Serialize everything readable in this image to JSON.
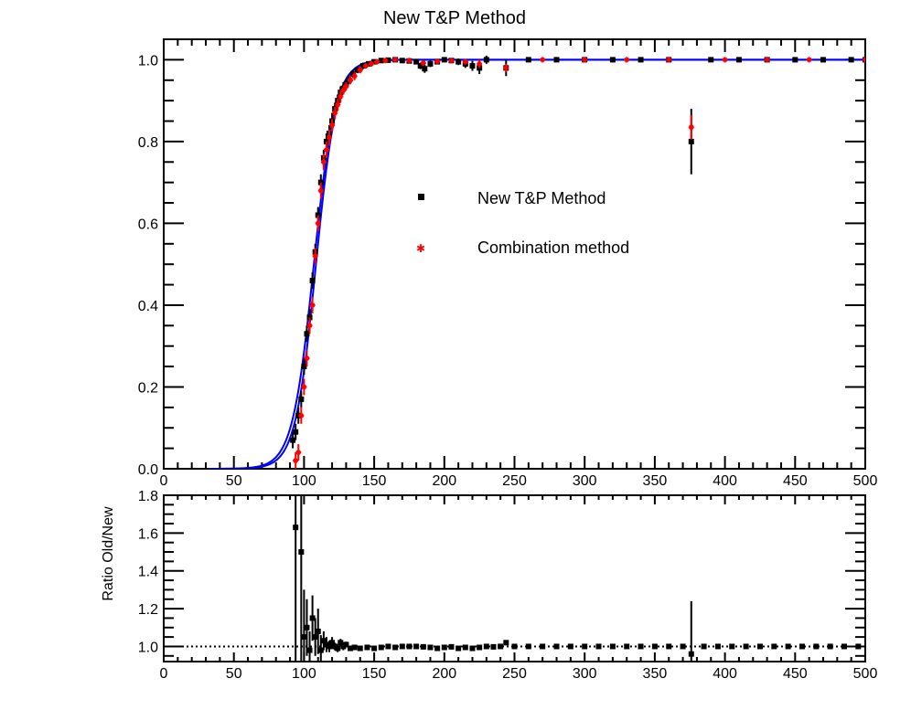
{
  "chart_data": [
    {
      "type": "scatter",
      "title": "New T&P Method",
      "xlabel": "",
      "ylabel": "",
      "xlim": [
        0,
        500
      ],
      "ylim": [
        0,
        1.05
      ],
      "x_ticks": [
        0,
        50,
        100,
        150,
        200,
        250,
        300,
        350,
        400,
        450,
        500
      ],
      "y_ticks": [
        0.0,
        0.2,
        0.4,
        0.6,
        0.8,
        1.0
      ],
      "x_tick_labels": [
        "0",
        "50",
        "100",
        "150",
        "200",
        "250",
        "300",
        "350",
        "400",
        "450",
        "500"
      ],
      "y_tick_labels": [
        "0.0",
        "0.2",
        "0.4",
        "0.6",
        "0.8",
        "1.0"
      ],
      "grid": false,
      "legend": {
        "placement": "center",
        "entries": [
          {
            "label": "New T&P Method",
            "color": "#000000",
            "marker": "square"
          },
          {
            "label": "Combination method",
            "color": "#ff0000",
            "marker": "star"
          }
        ]
      },
      "series": [
        {
          "name": "New T&P Method",
          "color": "#000000",
          "points": [
            [
              92,
              0.07,
              0.02
            ],
            [
              94,
              0.09,
              0.02
            ],
            [
              96,
              0.13,
              0.02
            ],
            [
              98,
              0.17,
              0.02
            ],
            [
              100,
              0.25,
              0.02
            ],
            [
              102,
              0.33,
              0.02
            ],
            [
              104,
              0.37,
              0.02
            ],
            [
              106,
              0.46,
              0.02
            ],
            [
              108,
              0.53,
              0.02
            ],
            [
              110,
              0.62,
              0.02
            ],
            [
              112,
              0.7,
              0.02
            ],
            [
              114,
              0.76,
              0.02
            ],
            [
              116,
              0.8,
              0.02
            ],
            [
              118,
              0.82,
              0.02
            ],
            [
              120,
              0.85,
              0.02
            ],
            [
              122,
              0.88,
              0.015
            ],
            [
              124,
              0.9,
              0.015
            ],
            [
              126,
              0.92,
              0.015
            ],
            [
              128,
              0.93,
              0.015
            ],
            [
              130,
              0.94,
              0.01
            ],
            [
              132,
              0.95,
              0.01
            ],
            [
              135,
              0.965,
              0.01
            ],
            [
              138,
              0.975,
              0.008
            ],
            [
              142,
              0.985,
              0.008
            ],
            [
              146,
              0.99,
              0.006
            ],
            [
              150,
              0.995,
              0.005
            ],
            [
              155,
              0.998,
              0.005
            ],
            [
              160,
              0.999,
              0.004
            ],
            [
              165,
              1.0,
              0.004
            ],
            [
              170,
              0.998,
              0.004
            ],
            [
              175,
              0.997,
              0.005
            ],
            [
              180,
              0.995,
              0.006
            ],
            [
              183,
              0.985,
              0.008
            ],
            [
              186,
              0.978,
              0.01
            ],
            [
              190,
              0.99,
              0.008
            ],
            [
              195,
              0.995,
              0.006
            ],
            [
              200,
              1.0,
              0.005
            ],
            [
              205,
              0.998,
              0.006
            ],
            [
              210,
              0.995,
              0.008
            ],
            [
              215,
              0.99,
              0.01
            ],
            [
              220,
              0.985,
              0.012
            ],
            [
              225,
              0.98,
              0.015
            ],
            [
              230,
              1.0,
              0.01
            ],
            [
              244,
              0.98,
              0.02
            ],
            [
              260,
              1.0,
              0.005
            ],
            [
              280,
              1.0,
              0.005
            ],
            [
              300,
              1.0,
              0.005
            ],
            [
              320,
              1.0,
              0.005
            ],
            [
              340,
              1.0,
              0.005
            ],
            [
              360,
              1.0,
              0.005
            ],
            [
              376,
              0.8,
              0.08
            ],
            [
              390,
              1.0,
              0.005
            ],
            [
              410,
              1.0,
              0.005
            ],
            [
              430,
              1.0,
              0.005
            ],
            [
              450,
              1.0,
              0.005
            ],
            [
              470,
              1.0,
              0.005
            ],
            [
              490,
              1.0,
              0.005
            ],
            [
              500,
              1.0,
              0.005
            ]
          ]
        },
        {
          "name": "Combination method",
          "color": "#ff0000",
          "points": [
            [
              94,
              0.02,
              0.02
            ],
            [
              96,
              0.04,
              0.02
            ],
            [
              98,
              0.13,
              0.02
            ],
            [
              100,
              0.2,
              0.02
            ],
            [
              102,
              0.27,
              0.02
            ],
            [
              104,
              0.35,
              0.02
            ],
            [
              106,
              0.4,
              0.02
            ],
            [
              108,
              0.52,
              0.02
            ],
            [
              110,
              0.6,
              0.02
            ],
            [
              112,
              0.68,
              0.02
            ],
            [
              114,
              0.75,
              0.02
            ],
            [
              116,
              0.78,
              0.02
            ],
            [
              118,
              0.81,
              0.02
            ],
            [
              120,
              0.84,
              0.015
            ],
            [
              122,
              0.87,
              0.015
            ],
            [
              124,
              0.89,
              0.015
            ],
            [
              126,
              0.91,
              0.015
            ],
            [
              128,
              0.925,
              0.01
            ],
            [
              130,
              0.935,
              0.01
            ],
            [
              133,
              0.95,
              0.01
            ],
            [
              136,
              0.96,
              0.01
            ],
            [
              140,
              0.975,
              0.008
            ],
            [
              144,
              0.985,
              0.006
            ],
            [
              148,
              0.99,
              0.005
            ],
            [
              152,
              0.995,
              0.005
            ],
            [
              158,
              0.998,
              0.004
            ],
            [
              165,
              1.0,
              0.004
            ],
            [
              175,
              0.998,
              0.004
            ],
            [
              185,
              0.992,
              0.006
            ],
            [
              195,
              0.996,
              0.005
            ],
            [
              205,
              0.998,
              0.005
            ],
            [
              215,
              0.995,
              0.006
            ],
            [
              225,
              0.99,
              0.01
            ],
            [
              244,
              0.98,
              0.01
            ],
            [
              270,
              1.0,
              0.004
            ],
            [
              300,
              1.0,
              0.004
            ],
            [
              330,
              1.0,
              0.004
            ],
            [
              360,
              1.0,
              0.004
            ],
            [
              376,
              0.835,
              0.03
            ],
            [
              400,
              1.0,
              0.004
            ],
            [
              430,
              1.0,
              0.004
            ],
            [
              460,
              1.0,
              0.004
            ],
            [
              500,
              1.0,
              0.004
            ]
          ]
        }
      ],
      "fits": [
        {
          "color": "#0000ff",
          "mean": 107,
          "width": 13,
          "x_start": 32,
          "x_end": 500
        },
        {
          "color": "#0000ff",
          "mean": 108.5,
          "width": 12.5,
          "x_start": 32,
          "x_end": 500
        }
      ]
    },
    {
      "type": "scatter",
      "title": "",
      "xlabel": "",
      "ylabel": "Ratio Old/New",
      "xlim": [
        0,
        500
      ],
      "ylim": [
        0.92,
        1.8
      ],
      "x_ticks": [
        0,
        50,
        100,
        150,
        200,
        250,
        300,
        350,
        400,
        450,
        500
      ],
      "y_ticks": [
        1.0,
        1.2,
        1.4,
        1.6,
        1.8
      ],
      "x_tick_labels": [
        "0",
        "50",
        "100",
        "150",
        "200",
        "250",
        "300",
        "350",
        "400",
        "450",
        "500"
      ],
      "y_tick_labels": [
        "1.0",
        "1.2",
        "1.4",
        "1.6",
        "1.8"
      ],
      "grid": false,
      "reference_line": 1.0,
      "series": [
        {
          "name": "",
          "color": "#000000",
          "points": [
            [
              94,
              1.63,
              1.0
            ],
            [
              98,
              1.5,
              1.0
            ],
            [
              100,
              1.05,
              0.25
            ],
            [
              102,
              1.1,
              0.15
            ],
            [
              104,
              0.98,
              0.1
            ],
            [
              106,
              1.15,
              0.12
            ],
            [
              108,
              1.05,
              0.1
            ],
            [
              110,
              1.08,
              0.12
            ],
            [
              112,
              0.98,
              0.08
            ],
            [
              114,
              1.03,
              0.05
            ],
            [
              116,
              1.01,
              0.04
            ],
            [
              118,
              1.0,
              0.03
            ],
            [
              120,
              1.02,
              0.03
            ],
            [
              122,
              1.0,
              0.02
            ],
            [
              124,
              0.99,
              0.02
            ],
            [
              126,
              1.02,
              0.02
            ],
            [
              128,
              1.0,
              0.02
            ],
            [
              130,
              1.01,
              0.015
            ],
            [
              133,
              0.99,
              0.01
            ],
            [
              136,
              0.995,
              0.01
            ],
            [
              140,
              0.99,
              0.01
            ],
            [
              145,
              0.995,
              0.008
            ],
            [
              150,
              0.99,
              0.008
            ],
            [
              155,
              0.995,
              0.006
            ],
            [
              160,
              1.0,
              0.006
            ],
            [
              165,
              0.995,
              0.006
            ],
            [
              170,
              1.0,
              0.006
            ],
            [
              175,
              1.0,
              0.006
            ],
            [
              180,
              1.0,
              0.006
            ],
            [
              185,
              0.998,
              0.006
            ],
            [
              190,
              0.995,
              0.006
            ],
            [
              195,
              0.99,
              0.006
            ],
            [
              200,
              0.995,
              0.006
            ],
            [
              205,
              0.998,
              0.006
            ],
            [
              210,
              0.99,
              0.006
            ],
            [
              215,
              0.995,
              0.006
            ],
            [
              220,
              0.99,
              0.006
            ],
            [
              225,
              0.995,
              0.006
            ],
            [
              230,
              1.0,
              0.006
            ],
            [
              235,
              0.998,
              0.006
            ],
            [
              240,
              1.0,
              0.006
            ],
            [
              244,
              1.02,
              0.01
            ],
            [
              250,
              1.0,
              0.005
            ],
            [
              260,
              1.0,
              0.005
            ],
            [
              270,
              1.0,
              0.005
            ],
            [
              280,
              1.0,
              0.005
            ],
            [
              290,
              1.0,
              0.005
            ],
            [
              300,
              1.0,
              0.005
            ],
            [
              310,
              1.0,
              0.005
            ],
            [
              320,
              1.0,
              0.005
            ],
            [
              330,
              1.0,
              0.005
            ],
            [
              340,
              1.0,
              0.005
            ],
            [
              350,
              1.0,
              0.005
            ],
            [
              360,
              1.0,
              0.005
            ],
            [
              370,
              1.0,
              0.005
            ],
            [
              376,
              0.96,
              0.28
            ],
            [
              385,
              1.0,
              0.005
            ],
            [
              395,
              1.0,
              0.005
            ],
            [
              405,
              1.0,
              0.005
            ],
            [
              415,
              1.0,
              0.005
            ],
            [
              425,
              1.0,
              0.005
            ],
            [
              435,
              1.0,
              0.005
            ],
            [
              445,
              1.0,
              0.005
            ],
            [
              455,
              1.0,
              0.005
            ],
            [
              465,
              1.0,
              0.005
            ],
            [
              475,
              1.0,
              0.005
            ],
            [
              485,
              1.0,
              0.005
            ],
            [
              495,
              1.0,
              0.005
            ]
          ]
        }
      ]
    }
  ]
}
